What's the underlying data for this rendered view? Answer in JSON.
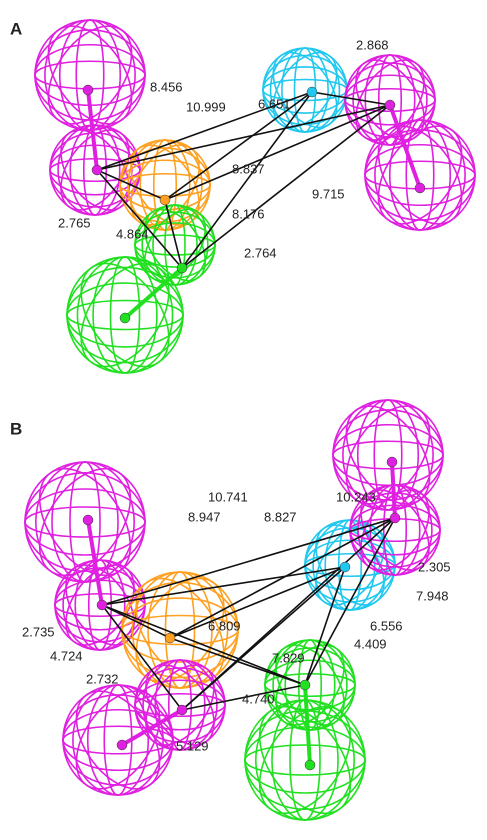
{
  "panels": [
    {
      "label": "A",
      "distances": [
        "2.868",
        "8.456",
        "6.651",
        "10.999",
        "8.837",
        "9.715",
        "8.176",
        "2.765",
        "4.864",
        "2.764"
      ]
    },
    {
      "label": "B",
      "distances": [
        "10.741",
        "10.243",
        "8.947",
        "8.827",
        "2.305",
        "7.948",
        "6.809",
        "6.556",
        "2.735",
        "4.409",
        "4.724",
        "7.829",
        "2.732",
        "4.740",
        "5.129"
      ]
    }
  ]
}
